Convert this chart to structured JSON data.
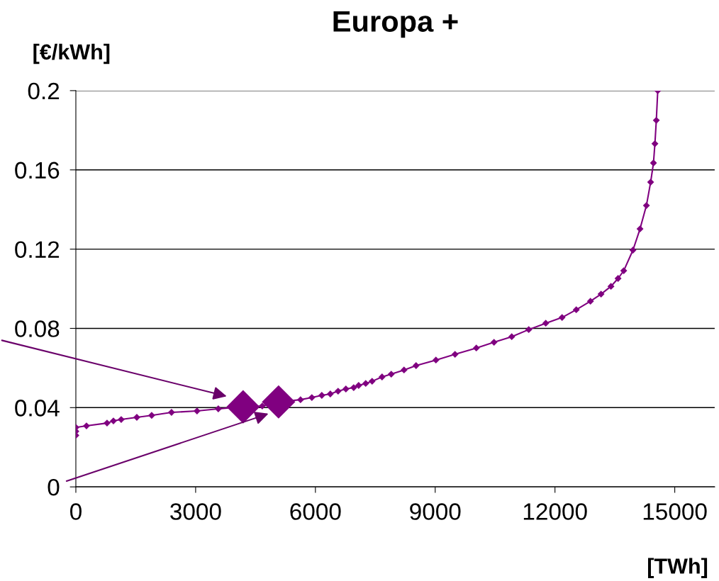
{
  "chart_data": {
    "type": "line",
    "title": "Europa +",
    "xlabel": "[TWh]",
    "ylabel": "[€/kWh]",
    "xlim": [
      0,
      16000
    ],
    "xticks": [
      0,
      3000,
      6000,
      9000,
      12000,
      15000
    ],
    "ylim": [
      0,
      0.2
    ],
    "yticks": [
      0,
      0.04,
      0.08,
      0.12,
      0.16,
      0.2
    ],
    "grid": "y",
    "marker": "diamond",
    "line_style": "solid",
    "series": [
      {
        "color": "#800080",
        "x": [
          0,
          0,
          0,
          266,
          781,
          941,
          1136,
          1527,
          1899,
          2396,
          3035,
          3568,
          4189,
          4669,
          5077,
          5290,
          5627,
          5911,
          6160,
          6373,
          6568,
          6763,
          6959,
          7083,
          7260,
          7420,
          7669,
          7899,
          8219,
          8521,
          9018,
          9497,
          10030,
          10473,
          10917,
          11343,
          11769,
          12178,
          12533,
          12888,
          13154,
          13402,
          13580,
          13722,
          13953,
          14130,
          14290,
          14396,
          14467,
          14503,
          14538,
          14574
        ],
        "values": [
          0.026,
          0.028,
          0.03,
          0.0308,
          0.0322,
          0.0333,
          0.034,
          0.0351,
          0.0361,
          0.0376,
          0.0383,
          0.0394,
          0.0404,
          0.0408,
          0.0429,
          0.0433,
          0.044,
          0.0451,
          0.0462,
          0.0469,
          0.0483,
          0.0494,
          0.0501,
          0.0512,
          0.0522,
          0.0533,
          0.0555,
          0.0569,
          0.059,
          0.0612,
          0.064,
          0.0669,
          0.0701,
          0.073,
          0.0758,
          0.0794,
          0.0826,
          0.0855,
          0.0894,
          0.0937,
          0.0973,
          0.1012,
          0.1052,
          0.1091,
          0.1195,
          0.1302,
          0.142,
          0.1538,
          0.1635,
          0.1732,
          0.185,
          0.2
        ]
      },
      {
        "type": "scatter",
        "color": "#800080",
        "x": [
          4189,
          5077
        ],
        "values": [
          0.0404,
          0.0429
        ]
      }
    ]
  }
}
